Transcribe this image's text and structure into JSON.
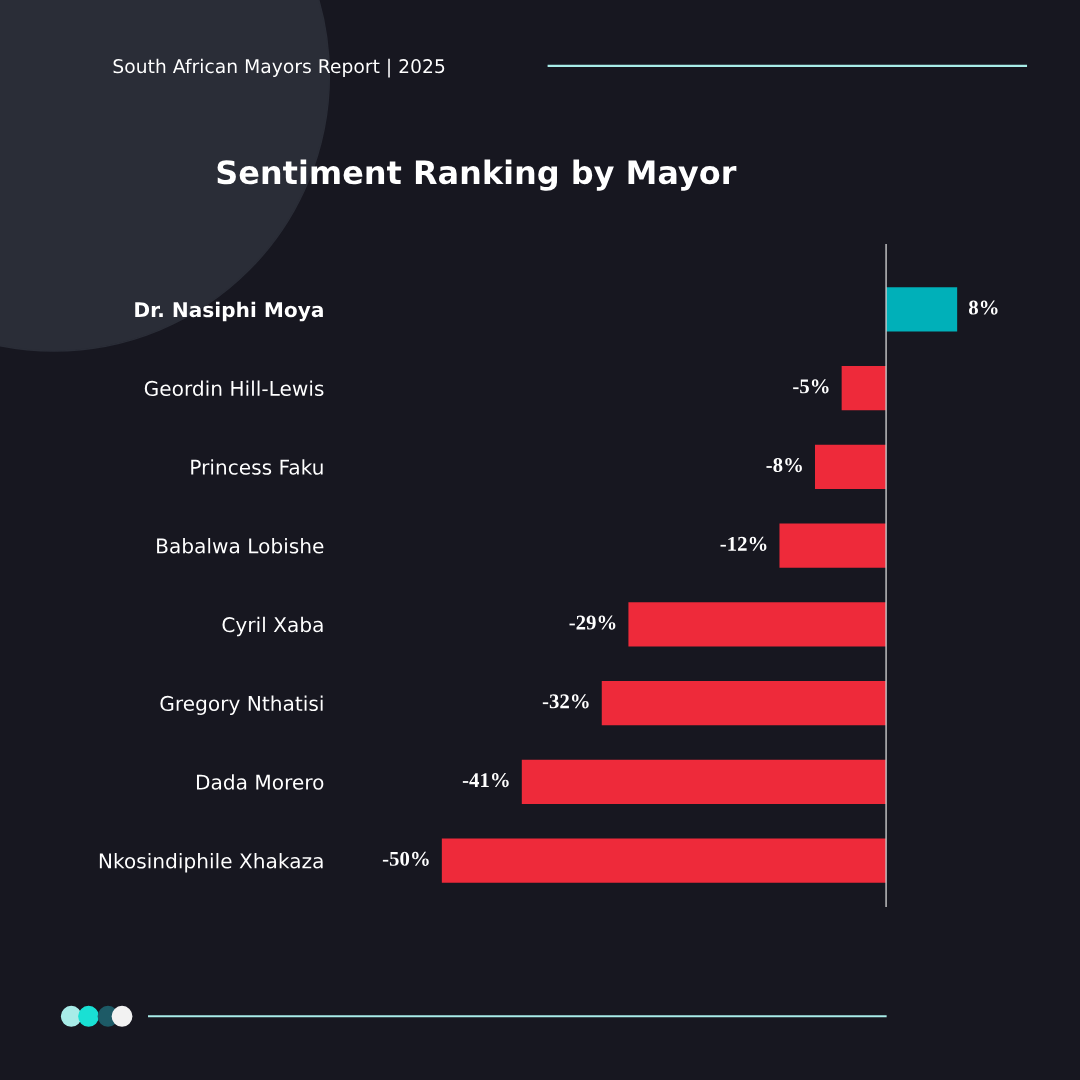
{
  "chart_data": {
    "type": "bar",
    "orientation": "horizontal",
    "title": "Sentiment Ranking by Mayor",
    "annotations": [
      "South African Mayors Report | 2025"
    ],
    "categories": [
      "Dr. Nasiphi Moya",
      "Geordin Hill-Lewis",
      "Princess Faku",
      "Babalwa Lobishe",
      "Cyril Xaba",
      "Gregory Nthatisi",
      "Dada Morero",
      "Nkosindiphile Xhakaza"
    ],
    "values": [
      8,
      -5,
      -8,
      -12,
      -29,
      -32,
      -41,
      -50
    ],
    "colors": [
      "#00b0b9",
      "#ee2a3a",
      "#ee2a3a",
      "#ee2a3a",
      "#ee2a3a",
      "#ee2a3a",
      "#ee2a3a",
      "#ee2a3a"
    ],
    "value_labels": [
      "8%",
      "-5%",
      "-8%",
      "-12%",
      "-29%",
      "-32%",
      "-41%",
      "-50%"
    ],
    "ref_lines": [
      {
        "axis": "x",
        "value": 0,
        "color": "#cccccc"
      }
    ],
    "grid": false,
    "legend": false,
    "tick_labels": "y"
  }
}
